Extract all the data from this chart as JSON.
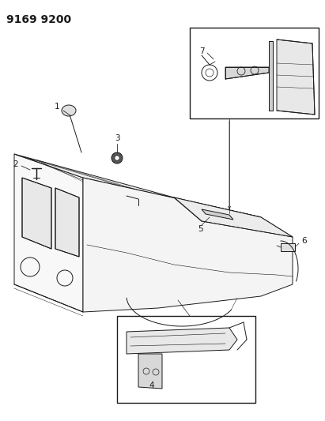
{
  "title": "9169 9200",
  "title_fontsize": 10,
  "bg_color": "#ffffff",
  "line_color": "#1a1a1a",
  "label_fontsize": 7.5,
  "figsize": [
    4.11,
    5.33
  ],
  "dpi": 100
}
